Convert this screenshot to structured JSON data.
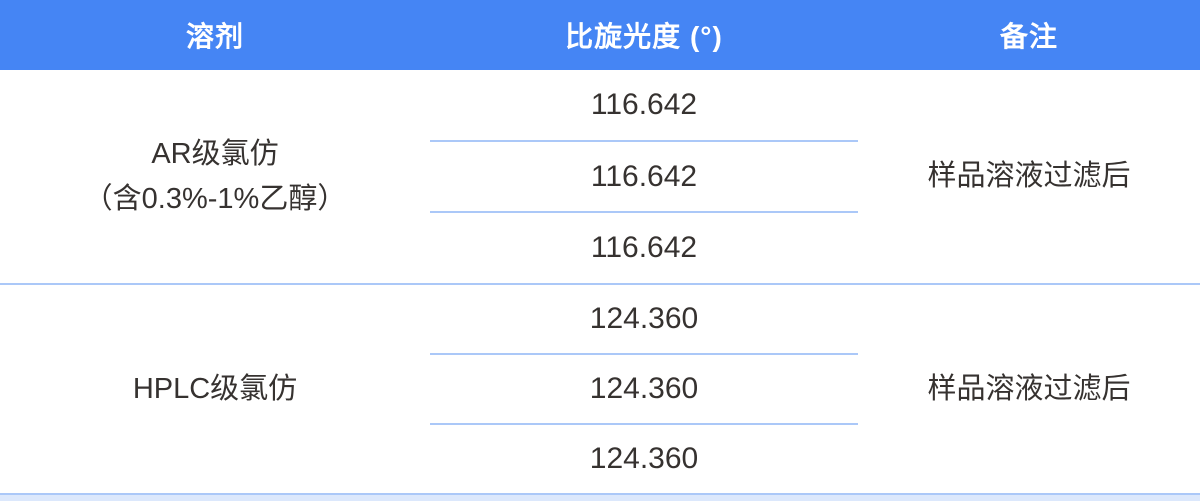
{
  "table": {
    "columns": {
      "solvent": "溶剂",
      "rotation": "比旋光度 (°)",
      "remark": "备注"
    },
    "rows": [
      {
        "solvent_line1": "AR级氯仿",
        "solvent_line2": "（含0.3%-1%乙醇）",
        "values": [
          "116.642",
          "116.642",
          "116.642"
        ],
        "remark": "样品溶液过滤后"
      },
      {
        "solvent_line1": "HPLC级氯仿",
        "solvent_line2": "",
        "values": [
          "124.360",
          "124.360",
          "124.360"
        ],
        "remark": "样品溶液过滤后"
      }
    ],
    "colors": {
      "header_bg": "#4585f4",
      "header_text": "#ffffff",
      "divider": "#abc8f8",
      "body_text": "#363230",
      "bottom_wash": "#dce8fc"
    }
  }
}
